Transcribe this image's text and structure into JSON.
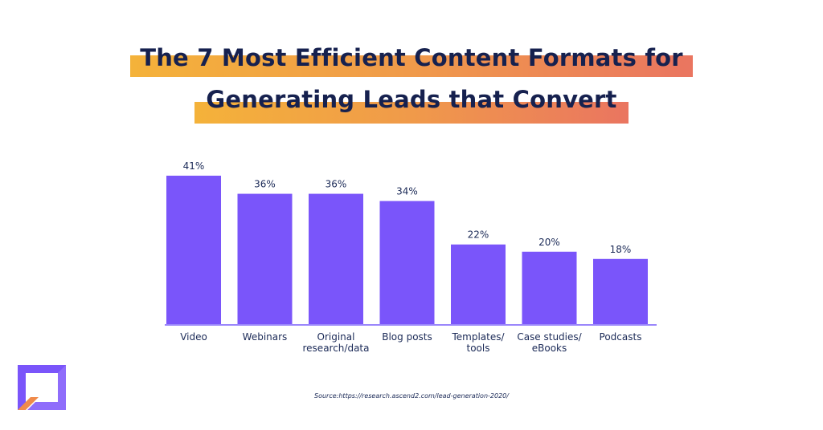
{
  "title": {
    "line1": "The 7 Most Efficient Content Formats for",
    "line2": "Generating Leads that Convert"
  },
  "source": "Source:https://research.ascend2.com/lead-generation-2020/",
  "logo": {
    "icon": "brand-square-logo-icon"
  },
  "colors": {
    "bar": "#7a55fa",
    "axis": "#9a86fb",
    "title_text": "#16214f",
    "title_band_start": "#f4b23a",
    "title_band_end": "#ea7560",
    "label_text": "#1b2a57"
  },
  "chart_data": {
    "type": "bar",
    "categories": [
      [
        "Video"
      ],
      [
        "Webinars"
      ],
      [
        "Original",
        "research/data"
      ],
      [
        "Blog posts"
      ],
      [
        "Templates/",
        "tools"
      ],
      [
        "Case studies/",
        "eBooks"
      ],
      [
        "Podcasts"
      ]
    ],
    "values": [
      41,
      36,
      36,
      34,
      22,
      20,
      18
    ],
    "value_labels": [
      "41%",
      "36%",
      "36%",
      "34%",
      "22%",
      "20%",
      "18%"
    ],
    "ylim": [
      0,
      41
    ],
    "grid": false,
    "xlabel": "",
    "ylabel": ""
  }
}
